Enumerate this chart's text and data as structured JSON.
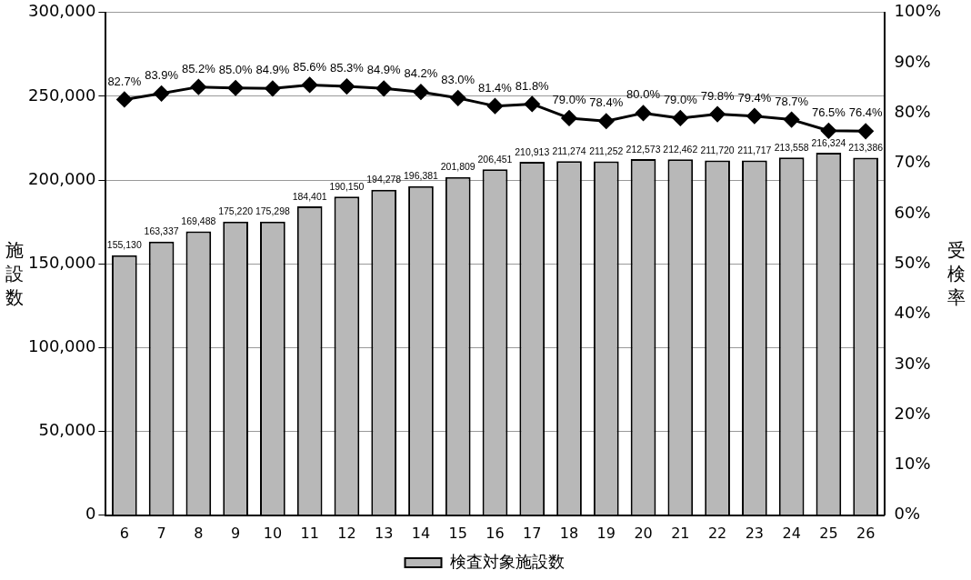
{
  "chart_data": {
    "type": "bar",
    "ylabel": "施設数",
    "y2label": "受検率",
    "categories": [
      "6",
      "7",
      "8",
      "9",
      "10",
      "11",
      "12",
      "13",
      "14",
      "15",
      "16",
      "17",
      "18",
      "19",
      "20",
      "21",
      "22",
      "23",
      "24",
      "25",
      "26"
    ],
    "series": [
      {
        "name": "検査対象施設数",
        "color": "#b8b8b8",
        "values": [
          155130,
          163337,
          169488,
          175220,
          175298,
          184401,
          190150,
          194278,
          196381,
          201809,
          206451,
          210913,
          211274,
          211252,
          212573,
          212462,
          211720,
          211717,
          213558,
          216324,
          213386
        ],
        "value_labels": [
          "155,130",
          "163,337",
          "169,488",
          "175,220",
          "175,298",
          "184,401",
          "190,150",
          "194,278",
          "196,381",
          "201,809",
          "206,451",
          "210,913",
          "211,274",
          "211,252",
          "212,573",
          "212,462",
          "211,720",
          "211,717",
          "213,558",
          "216,324",
          "213,386"
        ]
      },
      {
        "type": "line",
        "axis": "y2",
        "color": "#000000",
        "marker": "diamond",
        "values": [
          82.7,
          83.9,
          85.2,
          85.0,
          84.9,
          85.6,
          85.3,
          84.9,
          84.2,
          83.0,
          81.4,
          81.8,
          79.0,
          78.4,
          80.0,
          79.0,
          79.8,
          79.4,
          78.7,
          76.5,
          76.4
        ],
        "value_labels": [
          "82.7%",
          "83.9%",
          "85.2%",
          "85.0%",
          "84.9%",
          "85.6%",
          "85.3%",
          "84.9%",
          "84.2%",
          "83.0%",
          "81.4%",
          "81.8%",
          "79.0%",
          "78.4%",
          "80.0%",
          "79.0%",
          "79.8%",
          "79.4%",
          "78.7%",
          "76.5%",
          "76.4%"
        ]
      }
    ],
    "ylim": [
      0,
      300000
    ],
    "yticks": [
      0,
      {
        "value": 50000,
        "label": "50,000"
      },
      {
        "value": 100000,
        "label": "100,000"
      },
      {
        "value": 150000,
        "label": "150,000"
      },
      {
        "value": 200000,
        "label": "200,000"
      },
      {
        "value": 250000,
        "label": "250,000"
      },
      {
        "value": 300000,
        "label": "300,000"
      }
    ],
    "y2lim": [
      0,
      100
    ],
    "y2ticks": [
      {
        "value": 0,
        "label": "0%"
      },
      {
        "value": 10,
        "label": "10%"
      },
      {
        "value": 20,
        "label": "20%"
      },
      {
        "value": 30,
        "label": "30%"
      },
      {
        "value": 40,
        "label": "40%"
      },
      {
        "value": 50,
        "label": "50%"
      },
      {
        "value": 60,
        "label": "60%"
      },
      {
        "value": 70,
        "label": "70%"
      },
      {
        "value": 80,
        "label": "80%"
      },
      {
        "value": 90,
        "label": "90%"
      },
      {
        "value": 100,
        "label": "100%"
      }
    ],
    "grid": "y",
    "legend": "bottom"
  }
}
